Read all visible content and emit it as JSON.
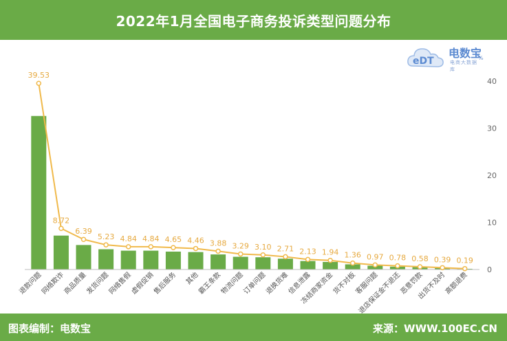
{
  "header": {
    "title": "2022年1月全国电子商务投诉类型问题分布"
  },
  "footer": {
    "left": "图表编制：电数宝",
    "right": "来源：WWW.100EC.CN"
  },
  "logo": {
    "mark": "eDT",
    "brand": "电数宝",
    "subtitle": "电商大数据库",
    "percent_glyph": "%"
  },
  "colors": {
    "bar": "#6aab47",
    "line": "#f0b94a",
    "label": "#e6a93f",
    "header": "#6aab47"
  },
  "chart_data": {
    "type": "bar",
    "categories": [
      "退款问题",
      "网络欺诈",
      "商品质量",
      "发货问题",
      "网络售假",
      "虚假促销",
      "售后服务",
      "其他",
      "霸王条款",
      "物流问题",
      "订单问题",
      "退换货难",
      "信息泄露",
      "冻结商家资金",
      "货不对板",
      "客服问题",
      "退店保证金不退还",
      "恶意罚款",
      "出货不及时",
      "高额退费"
    ],
    "series": [
      {
        "type": "bar",
        "values": [
          32.6,
          7.2,
          5.2,
          4.3,
          4.0,
          4.0,
          3.8,
          3.7,
          3.2,
          2.7,
          2.6,
          2.3,
          1.8,
          1.6,
          1.1,
          0.8,
          0.6,
          0.5,
          0.3,
          0.15
        ]
      },
      {
        "type": "line",
        "values": [
          39.53,
          8.72,
          6.39,
          5.23,
          4.84,
          4.84,
          4.65,
          4.46,
          3.88,
          3.29,
          3.1,
          2.71,
          2.13,
          1.94,
          1.36,
          0.97,
          0.78,
          0.58,
          0.39,
          0.19
        ]
      }
    ],
    "data_labels": [
      "39.53",
      "8.72",
      "6.39",
      "5.23",
      "4.84",
      "4.84",
      "4.65",
      "4.46",
      "3.88",
      "3.29",
      "3.10",
      "2.71",
      "2.13",
      "1.94",
      "1.36",
      "0.97",
      "0.78",
      "0.58",
      "0.39",
      "0.19"
    ],
    "y_ticks": [
      "0",
      "10",
      "20",
      "30",
      "40"
    ],
    "ylim": [
      0,
      40
    ],
    "y_axis_side": "right",
    "grid": false
  }
}
